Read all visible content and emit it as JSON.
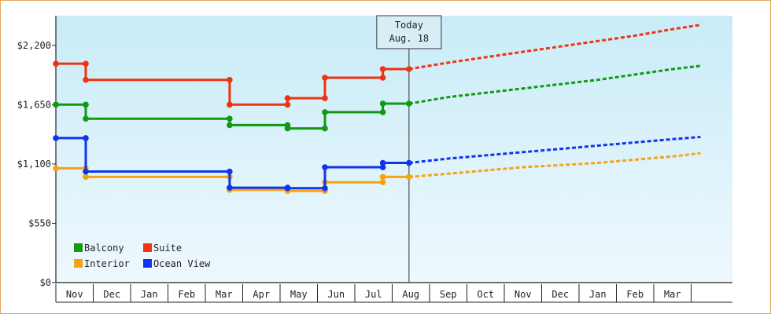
{
  "chart_data": {
    "type": "line",
    "title": "",
    "xlabel": "",
    "ylabel": "",
    "ylim": [
      0,
      2475
    ],
    "y_ticks": [
      0,
      550,
      1100,
      1650,
      2200
    ],
    "y_tick_labels": [
      "$0",
      "$550",
      "$1,100",
      "$1,650",
      "$2,200"
    ],
    "months": [
      "Nov",
      "Dec",
      "Jan",
      "Feb",
      "Mar",
      "Apr",
      "May",
      "Jun",
      "Jul",
      "Aug",
      "Sep",
      "Oct",
      "Nov",
      "Dec",
      "Jan",
      "Feb",
      "Mar"
    ],
    "today": {
      "line1": "Today",
      "line2": "Aug. 18",
      "x": 9.45
    },
    "legend": {
      "position": "bottom-left",
      "order": [
        "Balcony",
        "Suite",
        "Interior",
        "Ocean View"
      ]
    },
    "series": [
      {
        "name": "Balcony",
        "color": "#119911",
        "points": [
          [
            0,
            1650
          ],
          [
            0.8,
            1650
          ],
          [
            0.8,
            1520
          ],
          [
            4.65,
            1520
          ],
          [
            4.65,
            1460
          ],
          [
            6.2,
            1460
          ],
          [
            6.2,
            1430
          ],
          [
            7.2,
            1430
          ],
          [
            7.2,
            1580
          ],
          [
            8.75,
            1580
          ],
          [
            8.75,
            1660
          ],
          [
            9.45,
            1660
          ]
        ],
        "projection": [
          [
            9.45,
            1660
          ],
          [
            10.5,
            1720
          ],
          [
            11.5,
            1760
          ],
          [
            12.5,
            1800
          ],
          [
            13.5,
            1840
          ],
          [
            14.5,
            1880
          ],
          [
            15.5,
            1930
          ],
          [
            16.5,
            1980
          ],
          [
            17.25,
            2010
          ]
        ]
      },
      {
        "name": "Suite",
        "color": "#ee3311",
        "points": [
          [
            0,
            2030
          ],
          [
            0.8,
            2030
          ],
          [
            0.8,
            1880
          ],
          [
            4.65,
            1880
          ],
          [
            4.65,
            1650
          ],
          [
            6.2,
            1650
          ],
          [
            6.2,
            1710
          ],
          [
            7.2,
            1710
          ],
          [
            7.2,
            1900
          ],
          [
            8.75,
            1900
          ],
          [
            8.75,
            1980
          ],
          [
            9.45,
            1980
          ]
        ],
        "projection": [
          [
            9.45,
            1980
          ],
          [
            10.5,
            2040
          ],
          [
            11.5,
            2090
          ],
          [
            12.5,
            2140
          ],
          [
            13.5,
            2190
          ],
          [
            14.5,
            2240
          ],
          [
            15.5,
            2290
          ],
          [
            16.5,
            2350
          ],
          [
            17.25,
            2390
          ]
        ]
      },
      {
        "name": "Interior",
        "color": "#f5a312",
        "points": [
          [
            0,
            1060
          ],
          [
            0.8,
            1060
          ],
          [
            0.8,
            980
          ],
          [
            4.65,
            980
          ],
          [
            4.65,
            860
          ],
          [
            6.2,
            860
          ],
          [
            6.2,
            850
          ],
          [
            7.2,
            850
          ],
          [
            7.2,
            930
          ],
          [
            8.75,
            930
          ],
          [
            8.75,
            980
          ],
          [
            9.45,
            980
          ]
        ],
        "projection": [
          [
            9.45,
            980
          ],
          [
            10.5,
            1010
          ],
          [
            11.5,
            1040
          ],
          [
            12.5,
            1070
          ],
          [
            13.5,
            1090
          ],
          [
            14.5,
            1110
          ],
          [
            15.5,
            1140
          ],
          [
            16.5,
            1170
          ],
          [
            17.25,
            1200
          ]
        ]
      },
      {
        "name": "Ocean View",
        "color": "#1133ee",
        "points": [
          [
            0,
            1340
          ],
          [
            0.8,
            1340
          ],
          [
            0.8,
            1030
          ],
          [
            4.65,
            1030
          ],
          [
            4.65,
            880
          ],
          [
            6.2,
            880
          ],
          [
            6.2,
            875
          ],
          [
            7.2,
            875
          ],
          [
            7.2,
            1070
          ],
          [
            8.75,
            1070
          ],
          [
            8.75,
            1110
          ],
          [
            9.45,
            1110
          ]
        ],
        "projection": [
          [
            9.45,
            1110
          ],
          [
            10.5,
            1150
          ],
          [
            11.5,
            1180
          ],
          [
            12.5,
            1210
          ],
          [
            13.5,
            1240
          ],
          [
            14.5,
            1270
          ],
          [
            15.5,
            1300
          ],
          [
            16.5,
            1330
          ],
          [
            17.25,
            1350
          ]
        ]
      }
    ]
  }
}
